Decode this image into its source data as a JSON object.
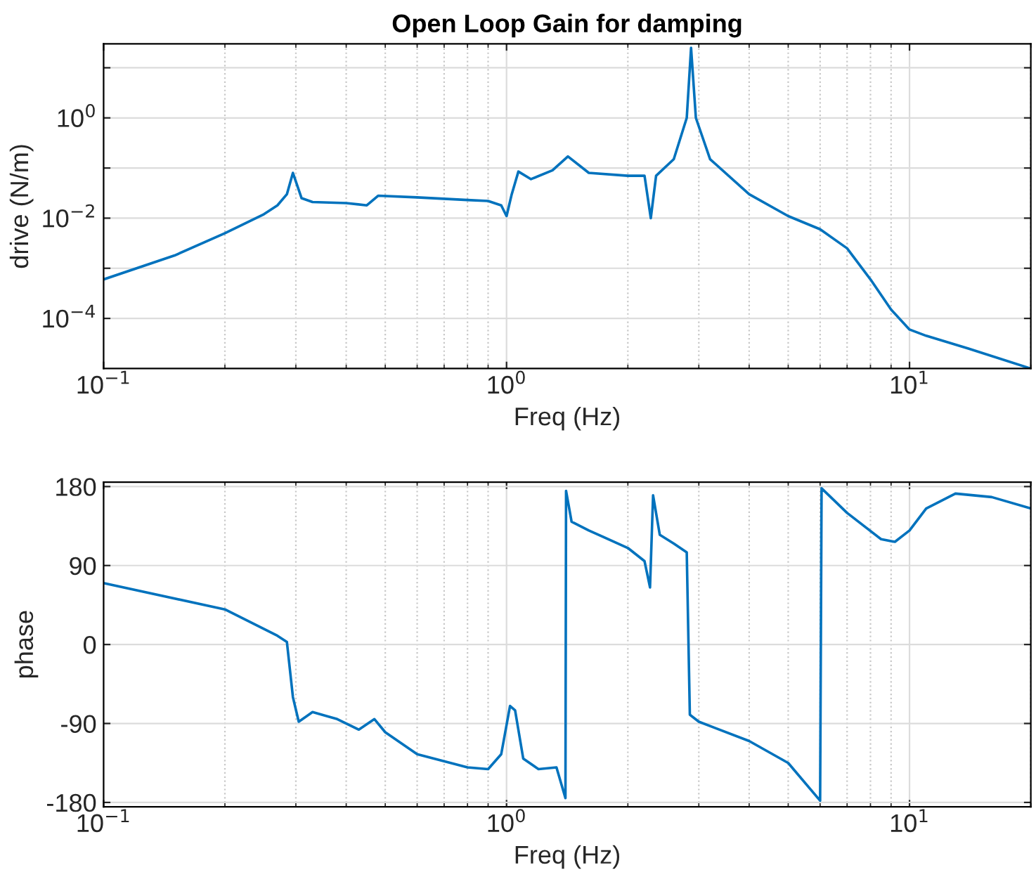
{
  "chart_data": [
    {
      "type": "line",
      "title": "Open Loop Gain for damping",
      "xlabel": "Freq (Hz)",
      "ylabel": "drive (N/m)",
      "log": "xy",
      "grid": true,
      "x": [
        0.1,
        0.15,
        0.2,
        0.25,
        0.27,
        0.285,
        0.295,
        0.31,
        0.33,
        0.4,
        0.45,
        0.48,
        0.6,
        0.8,
        0.9,
        0.97,
        1.0,
        1.03,
        1.07,
        1.15,
        1.3,
        1.42,
        1.6,
        2.0,
        2.2,
        2.28,
        2.35,
        2.6,
        2.8,
        2.87,
        2.95,
        3.2,
        4,
        5,
        6,
        7,
        8,
        9,
        10,
        11,
        14,
        20
      ],
      "series": [
        {
          "color": "#0072bd",
          "values": [
            0.0006,
            0.0018,
            0.005,
            0.012,
            0.018,
            0.03,
            0.08,
            0.025,
            0.021,
            0.02,
            0.018,
            0.028,
            0.026,
            0.023,
            0.022,
            0.018,
            0.011,
            0.03,
            0.085,
            0.06,
            0.09,
            0.17,
            0.08,
            0.07,
            0.07,
            0.01,
            0.07,
            0.15,
            1.0,
            25,
            1.0,
            0.15,
            0.03,
            0.011,
            0.006,
            0.0025,
            0.0006,
            0.00015,
            6e-05,
            4.5e-05,
            2.5e-05,
            1e-05
          ]
        }
      ],
      "xlim": [
        0.1,
        20
      ],
      "ylim": [
        1e-05,
        30
      ],
      "xticks": [
        {
          "value": 0.1,
          "label": "10$^{−1}$"
        },
        {
          "value": 1,
          "label": "10$^{0}$"
        },
        {
          "value": 10,
          "label": "10$^{1}$"
        }
      ],
      "yticks": [
        {
          "value": 0.0001,
          "label": "10$^{−4}$"
        },
        {
          "value": 0.001,
          "label": null
        },
        {
          "value": 0.01,
          "label": "10$^{−2}$"
        },
        {
          "value": 0.1,
          "label": null
        },
        {
          "value": 1,
          "label": "10$^{0}$"
        },
        {
          "value": 10,
          "label": null
        }
      ]
    },
    {
      "type": "line",
      "xlabel": "Freq (Hz)",
      "ylabel": "phase",
      "log": "x",
      "grid": true,
      "x": [
        0.1,
        0.2,
        0.27,
        0.285,
        0.295,
        0.305,
        0.33,
        0.38,
        0.43,
        0.47,
        0.5,
        0.6,
        0.8,
        0.9,
        0.97,
        1.02,
        1.05,
        1.1,
        1.2,
        1.33,
        1.4,
        1.405,
        1.45,
        1.6,
        2.0,
        2.2,
        2.27,
        2.31,
        2.4,
        2.6,
        2.8,
        2.85,
        3,
        4,
        5,
        6.0,
        6.05,
        7,
        8.5,
        9.2,
        10,
        11,
        13,
        16,
        20
      ],
      "series": [
        {
          "color": "#0072bd",
          "values": [
            70,
            40,
            10,
            3,
            -60,
            -88,
            -77,
            -85,
            -97,
            -85,
            -100,
            -125,
            -140,
            -142,
            -125,
            -70,
            -75,
            -130,
            -142,
            -140,
            -175,
            175,
            140,
            130,
            110,
            95,
            65,
            170,
            125,
            115,
            105,
            -80,
            -88,
            -110,
            -135,
            -178,
            178,
            150,
            120,
            117,
            130,
            155,
            172,
            168,
            155
          ]
        }
      ],
      "xlim": [
        0.1,
        20
      ],
      "ylim": [
        -185,
        185
      ],
      "xticks": [
        {
          "value": 0.1,
          "label": "10$^{−1}$"
        },
        {
          "value": 1,
          "label": "10$^{0}$"
        },
        {
          "value": 10,
          "label": "10$^{1}$"
        }
      ],
      "yticks": [
        {
          "value": -180,
          "label": "-180"
        },
        {
          "value": -90,
          "label": "-90"
        },
        0,
        90,
        180
      ]
    }
  ]
}
